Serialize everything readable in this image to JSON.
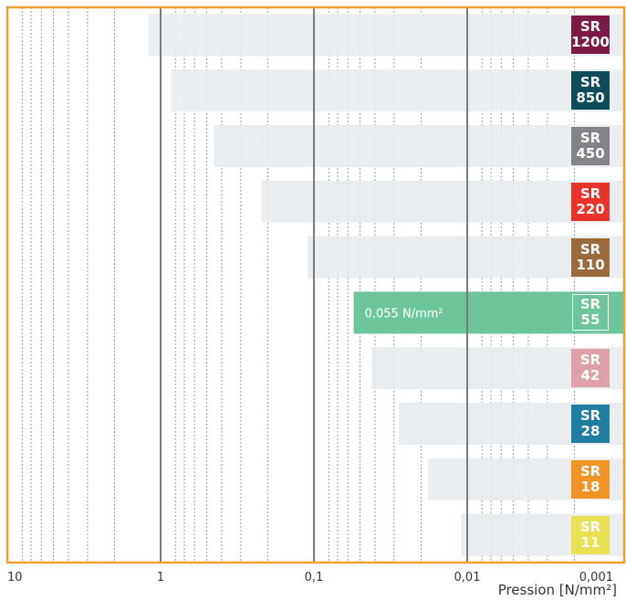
{
  "chart_data": {
    "type": "bar",
    "orientation": "horizontal",
    "categories": [
      "SR\n1200",
      "SR\n850",
      "SR\n450",
      "SR\n220",
      "SR\n110",
      "SR\n55",
      "SR\n42",
      "SR\n28",
      "SR\n18",
      "SR\n11"
    ],
    "values": [
      1.2,
      0.85,
      0.45,
      0.22,
      0.11,
      0.055,
      0.042,
      0.028,
      0.018,
      0.011
    ],
    "value_labels": [
      null,
      null,
      null,
      null,
      null,
      "0,055 N/mm²",
      null,
      null,
      null,
      null
    ],
    "bar_color": "#e9ecef",
    "highlight_color": "#6dc59c",
    "tag_colors": [
      "#7b1a45",
      "#0e4c5c",
      "#838487",
      "#e8332a",
      "#9a6a3d",
      "#6dc59c",
      "#dea1a9",
      "#1f7ea2",
      "#f39427",
      "#e9e053"
    ],
    "xscale": "log",
    "xlim": [
      10,
      0.001
    ],
    "xticks": [
      10,
      1,
      {
        "value": 0.1,
        "label": "0,1"
      },
      {
        "value": 0.01,
        "label": "0,01"
      },
      {
        "value": 0.001,
        "label": "0,001"
      }
    ],
    "xminorticks": [
      8,
      7,
      6,
      5,
      4,
      3,
      2,
      0.8,
      0.7,
      0.6,
      0.5,
      0.4,
      0.3,
      0.2,
      0.08,
      0.07,
      0.06,
      0.05,
      0.04,
      0.03,
      0.02,
      0.008,
      0.007,
      0.006,
      0.005,
      0.004,
      0.003,
      0.002
    ],
    "xlabel": "Pression [N/mm²]",
    "frame_color": "#f0a031",
    "grid": true
  }
}
